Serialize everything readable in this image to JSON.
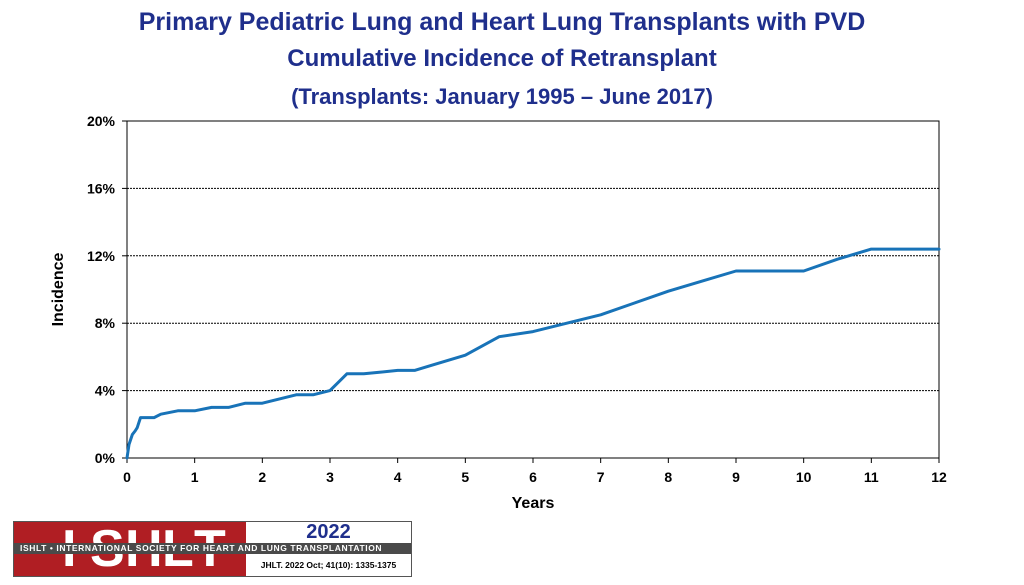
{
  "chart_data": {
    "type": "line",
    "title": "Primary Pediatric Lung and Heart Lung Transplants with PVD",
    "subtitle": "Cumulative Incidence of Retransplant",
    "subtitle2": "(Transplants: January 1995 – June 2017)",
    "xlabel": "Years",
    "ylabel": "Incidence",
    "xlim": [
      0,
      12
    ],
    "ylim": [
      0,
      20
    ],
    "xticks": [
      "0",
      "1",
      "2",
      "3",
      "4",
      "5",
      "6",
      "7",
      "8",
      "9",
      "10",
      "11",
      "12"
    ],
    "yticks": [
      "0%",
      "4%",
      "8%",
      "12%",
      "16%",
      "20%"
    ],
    "grid": true,
    "series": [
      {
        "name": "Retransplant",
        "color": "#1873b8",
        "x": [
          0,
          0.03,
          0.08,
          0.12,
          0.15,
          0.2,
          0.3,
          0.4,
          0.5,
          0.75,
          1.0,
          1.25,
          1.5,
          1.75,
          2.0,
          2.5,
          2.75,
          3.0,
          3.25,
          3.5,
          3.75,
          4.0,
          4.25,
          4.5,
          5.0,
          5.5,
          6.0,
          6.5,
          7.0,
          7.5,
          8.0,
          8.5,
          9.0,
          9.5,
          10.0,
          10.5,
          11.0,
          11.5,
          12.0
        ],
        "y": [
          0,
          0.8,
          1.4,
          1.6,
          1.8,
          2.4,
          2.4,
          2.4,
          2.6,
          2.8,
          2.8,
          3.0,
          3.0,
          3.25,
          3.25,
          3.75,
          3.75,
          4.0,
          5.0,
          5.0,
          5.1,
          5.2,
          5.2,
          5.5,
          6.1,
          7.2,
          7.5,
          8.0,
          8.5,
          9.2,
          9.9,
          10.5,
          11.1,
          11.1,
          11.1,
          11.8,
          12.4,
          12.4,
          12.4
        ]
      }
    ]
  },
  "footer": {
    "logo_letters": [
      "I",
      "S",
      "H",
      "L",
      "T"
    ],
    "logo_strip_text": "ISHLT • INTERNATIONAL SOCIETY FOR HEART AND LUNG TRANSPLANTATION",
    "year": "2022",
    "citation": "JHLT. 2022 Oct; 41(10): 1335-1375",
    "brand_color": "#b01e23",
    "accent_color": "#1f2f8c"
  }
}
